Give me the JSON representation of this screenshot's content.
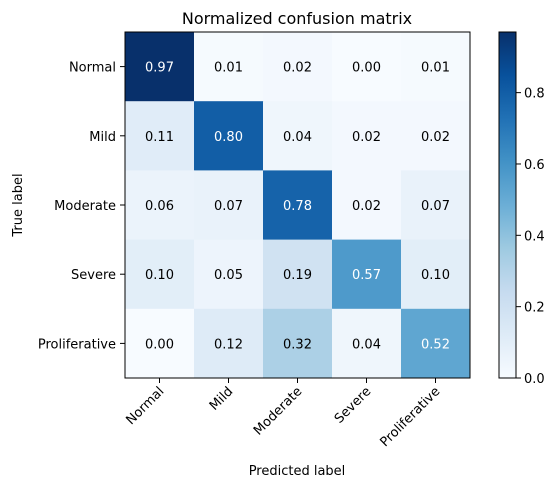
{
  "chart_data": {
    "type": "heatmap",
    "title": "Normalized confusion matrix",
    "xlabel": "Predicted label",
    "ylabel": "True label",
    "x_categories": [
      "Normal",
      "Mild",
      "Moderate",
      "Severe",
      "Proliferative"
    ],
    "y_categories": [
      "Normal",
      "Mild",
      "Moderate",
      "Severe",
      "Proliferative"
    ],
    "values": [
      [
        0.97,
        0.01,
        0.02,
        0.0,
        0.01
      ],
      [
        0.11,
        0.8,
        0.04,
        0.02,
        0.02
      ],
      [
        0.06,
        0.07,
        0.78,
        0.02,
        0.07
      ],
      [
        0.1,
        0.05,
        0.19,
        0.57,
        0.1
      ],
      [
        0.0,
        0.12,
        0.32,
        0.04,
        0.52
      ]
    ],
    "value_format": "0.00",
    "colormap": "Blues",
    "colormap_stops": [
      "#f7fbff",
      "#deebf7",
      "#c6dbef",
      "#9ecae1",
      "#6baed6",
      "#4292c6",
      "#2171b5",
      "#08519c",
      "#08306b"
    ],
    "colorbar": {
      "range": [
        0.0,
        0.97
      ],
      "ticks": [
        0.0,
        0.2,
        0.4,
        0.6,
        0.8
      ],
      "tick_labels": [
        "0.0",
        "0.2",
        "0.4",
        "0.6",
        "0.8"
      ]
    },
    "text_color_dark": "#000000",
    "text_color_light": "#ffffff",
    "grid": false
  }
}
